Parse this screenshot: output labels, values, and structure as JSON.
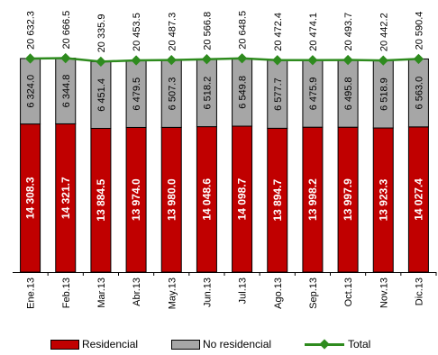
{
  "chart_data": {
    "type": "bar",
    "stacked": true,
    "categories": [
      "Ene.13",
      "Feb.13",
      "Mar.13",
      "Abr.13",
      "May.13",
      "Jun.13",
      "Jul.13",
      "Ago.13",
      "Sep.13",
      "Oct.13",
      "Nov.13",
      "Dic.13"
    ],
    "series": [
      {
        "name": "Residencial",
        "color": "#c00000",
        "values": [
          14308.3,
          14321.7,
          13884.5,
          13974.0,
          13980.0,
          14048.6,
          14098.7,
          13894.7,
          13998.2,
          13997.9,
          13923.3,
          14027.4
        ],
        "labels": [
          "14 308.3",
          "14 321.7",
          "13 884.5",
          "13 974.0",
          "13 980.0",
          "14 048.6",
          "14 098.7",
          "13 894.7",
          "13 998.2",
          "13 997.9",
          "13 923.3",
          "14 027.4"
        ]
      },
      {
        "name": "No residencial",
        "color": "#a6a6a6",
        "values": [
          6324.0,
          6344.8,
          6451.4,
          6479.5,
          6507.3,
          6518.2,
          6549.8,
          6577.7,
          6475.9,
          6495.8,
          6518.9,
          6563.0
        ],
        "labels": [
          "6 324.0",
          "6 344.8",
          "6 451.4",
          "6 479.5",
          "6 507.3",
          "6 518.2",
          "6 549.8",
          "6 577.7",
          "6 475.9",
          "6 495.8",
          "6 518.9",
          "6 563.0"
        ]
      },
      {
        "name": "Total",
        "type": "line",
        "color": "#2e8b1e",
        "values": [
          20632.3,
          20666.5,
          20335.9,
          20453.5,
          20487.3,
          20566.8,
          20648.5,
          20472.4,
          20474.1,
          20493.7,
          20442.2,
          20590.4
        ],
        "labels": [
          "20 632.3",
          "20 666.5",
          "20 335.9",
          "20 453.5",
          "20 487.3",
          "20 566.8",
          "20 648.5",
          "20 472.4",
          "20 474.1",
          "20 493.7",
          "20 442.2",
          "20 590.4"
        ]
      }
    ],
    "ylim": [
      0,
      23500
    ],
    "grid": false,
    "legend_position": "bottom"
  }
}
